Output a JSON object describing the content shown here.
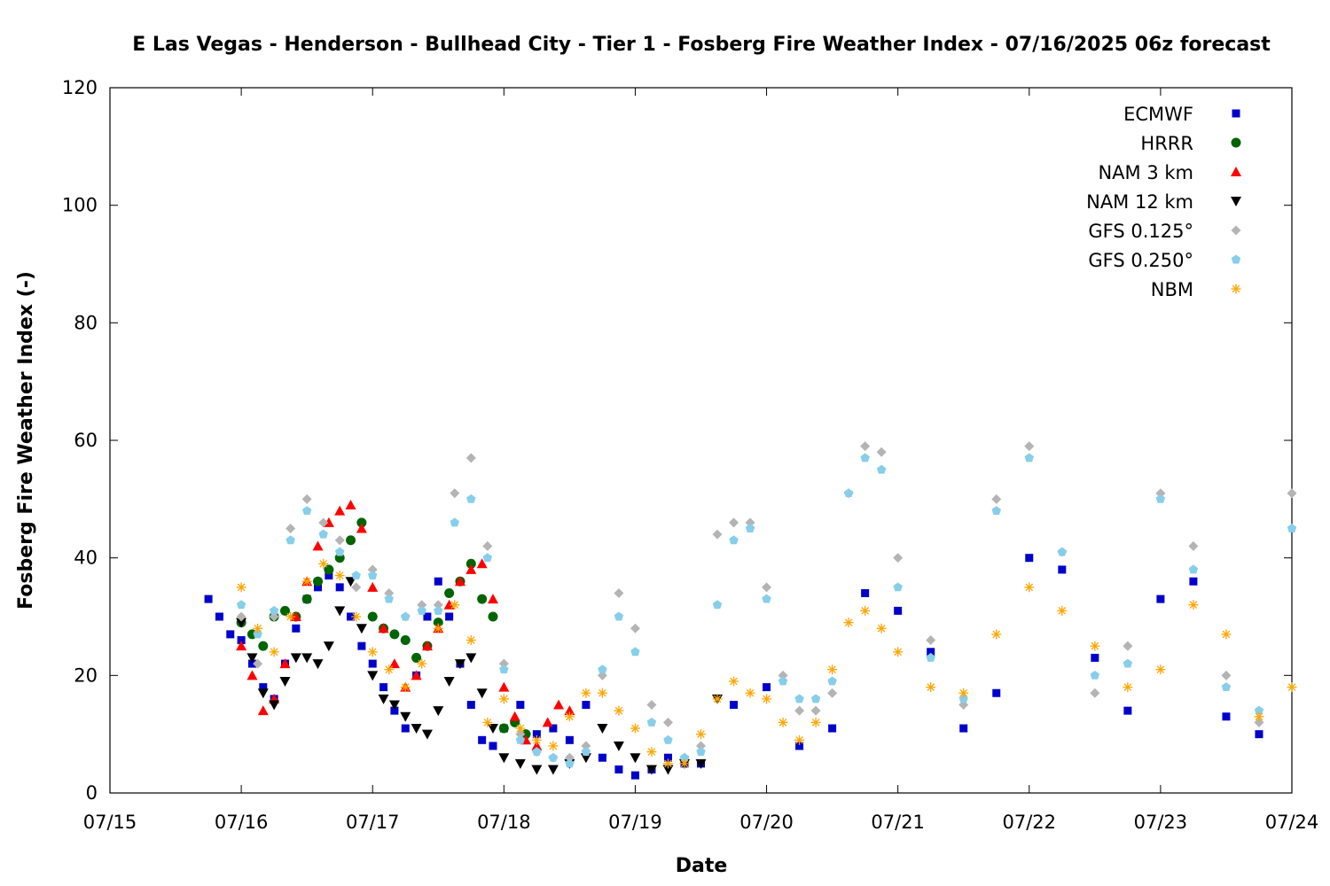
{
  "chart_data": {
    "type": "scatter",
    "title": "E Las Vegas - Henderson - Bullhead City - Tier 1 - Fosberg Fire Weather Index - 07/16/2025 06z forecast",
    "xlabel": "Date",
    "ylabel": "Fosberg Fire Weather Index (-)",
    "xlim": [
      "07/15",
      "07/24"
    ],
    "ylim": [
      0,
      120
    ],
    "x_ticks": [
      "07/15",
      "07/16",
      "07/17",
      "07/18",
      "07/19",
      "07/20",
      "07/21",
      "07/22",
      "07/23",
      "07/24"
    ],
    "y_ticks": [
      0,
      20,
      40,
      60,
      80,
      100,
      120
    ],
    "grid": false,
    "legend_position": "top-right",
    "colors": {
      "ECMWF": "#0000cc",
      "HRRR": "#006400",
      "NAM 3 km": "#ff0000",
      "NAM 12 km": "#000000",
      "GFS 0.125°": "#b4b4b4",
      "GFS 0.250°": "#87ceeb",
      "NBM": "#ffa500"
    },
    "series": [
      {
        "name": "ECMWF",
        "marker": "square",
        "x": [
          "07/15 18:00",
          "07/15 20:00",
          "07/15 22:00",
          "07/16 00:00",
          "07/16 02:00",
          "07/16 04:00",
          "07/16 06:00",
          "07/16 08:00",
          "07/16 10:00",
          "07/16 12:00",
          "07/16 14:00",
          "07/16 16:00",
          "07/16 18:00",
          "07/16 20:00",
          "07/16 22:00",
          "07/17 00:00",
          "07/17 02:00",
          "07/17 04:00",
          "07/17 06:00",
          "07/17 08:00",
          "07/17 10:00",
          "07/17 12:00",
          "07/17 14:00",
          "07/17 16:00",
          "07/17 18:00",
          "07/17 20:00",
          "07/17 22:00",
          "07/18 00:00",
          "07/18 03:00",
          "07/18 06:00",
          "07/18 09:00",
          "07/18 12:00",
          "07/18 15:00",
          "07/18 18:00",
          "07/18 21:00",
          "07/19 00:00",
          "07/19 03:00",
          "07/19 06:00",
          "07/19 09:00",
          "07/19 12:00",
          "07/19 18:00",
          "07/20 00:00",
          "07/20 06:00",
          "07/20 12:00",
          "07/20 18:00",
          "07/21 00:00",
          "07/21 06:00",
          "07/21 12:00",
          "07/21 18:00",
          "07/22 00:00",
          "07/22 06:00",
          "07/22 12:00",
          "07/22 18:00",
          "07/23 00:00",
          "07/23 06:00",
          "07/23 12:00",
          "07/23 18:00"
        ],
        "y": [
          33,
          30,
          27,
          26,
          22,
          18,
          16,
          22,
          28,
          33,
          35,
          37,
          35,
          30,
          25,
          22,
          18,
          14,
          11,
          20,
          30,
          36,
          30,
          22,
          15,
          9,
          8,
          11,
          15,
          10,
          11,
          9,
          15,
          6,
          4,
          3,
          4,
          6,
          5,
          5,
          15,
          18,
          8,
          11,
          34,
          31,
          24,
          11,
          17,
          40,
          38,
          23,
          14,
          33,
          36,
          13,
          10
        ]
      },
      {
        "name": "HRRR",
        "marker": "circle",
        "x": [
          "07/16 00:00",
          "07/16 02:00",
          "07/16 04:00",
          "07/16 06:00",
          "07/16 08:00",
          "07/16 10:00",
          "07/16 12:00",
          "07/16 14:00",
          "07/16 16:00",
          "07/16 18:00",
          "07/16 20:00",
          "07/16 22:00",
          "07/17 00:00",
          "07/17 02:00",
          "07/17 04:00",
          "07/17 06:00",
          "07/17 08:00",
          "07/17 10:00",
          "07/17 12:00",
          "07/17 14:00",
          "07/17 16:00",
          "07/17 18:00",
          "07/17 20:00",
          "07/17 22:00",
          "07/18 00:00",
          "07/18 02:00",
          "07/18 04:00"
        ],
        "y": [
          29,
          27,
          25,
          30,
          31,
          30,
          33,
          36,
          38,
          40,
          43,
          46,
          30,
          28,
          27,
          26,
          23,
          25,
          29,
          34,
          36,
          39,
          33,
          30,
          11,
          12,
          10
        ]
      },
      {
        "name": "NAM 3 km",
        "marker": "triangle-up",
        "x": [
          "07/16 00:00",
          "07/16 02:00",
          "07/16 04:00",
          "07/16 06:00",
          "07/16 08:00",
          "07/16 10:00",
          "07/16 12:00",
          "07/16 14:00",
          "07/16 16:00",
          "07/16 18:00",
          "07/16 20:00",
          "07/16 22:00",
          "07/17 00:00",
          "07/17 02:00",
          "07/17 04:00",
          "07/17 06:00",
          "07/17 08:00",
          "07/17 10:00",
          "07/17 12:00",
          "07/17 14:00",
          "07/17 16:00",
          "07/17 18:00",
          "07/17 20:00",
          "07/17 22:00",
          "07/18 00:00",
          "07/18 02:00",
          "07/18 04:00",
          "07/18 06:00",
          "07/18 08:00",
          "07/18 10:00",
          "07/18 12:00"
        ],
        "y": [
          25,
          20,
          14,
          16,
          22,
          30,
          36,
          42,
          46,
          48,
          49,
          45,
          35,
          28,
          22,
          18,
          20,
          25,
          28,
          32,
          36,
          38,
          39,
          33,
          18,
          13,
          9,
          8,
          12,
          15,
          14
        ]
      },
      {
        "name": "NAM 12 km",
        "marker": "triangle-down",
        "x": [
          "07/16 00:00",
          "07/16 02:00",
          "07/16 04:00",
          "07/16 06:00",
          "07/16 08:00",
          "07/16 10:00",
          "07/16 12:00",
          "07/16 14:00",
          "07/16 16:00",
          "07/16 18:00",
          "07/16 20:00",
          "07/16 22:00",
          "07/17 00:00",
          "07/17 02:00",
          "07/17 04:00",
          "07/17 06:00",
          "07/17 08:00",
          "07/17 10:00",
          "07/17 12:00",
          "07/17 14:00",
          "07/17 16:00",
          "07/17 18:00",
          "07/17 20:00",
          "07/17 22:00",
          "07/18 00:00",
          "07/18 03:00",
          "07/18 06:00",
          "07/18 09:00",
          "07/18 12:00",
          "07/18 15:00",
          "07/18 18:00",
          "07/18 21:00",
          "07/19 00:00",
          "07/19 03:00",
          "07/19 06:00",
          "07/19 09:00",
          "07/19 12:00",
          "07/19 15:00"
        ],
        "y": [
          29,
          23,
          17,
          15,
          19,
          23,
          23,
          22,
          25,
          31,
          36,
          28,
          20,
          16,
          15,
          13,
          11,
          10,
          14,
          19,
          22,
          23,
          17,
          11,
          6,
          5,
          4,
          4,
          5,
          6,
          11,
          8,
          6,
          4,
          4,
          5,
          5,
          16
        ]
      },
      {
        "name": "GFS 0.125°",
        "marker": "diamond",
        "x": [
          "07/16 00:00",
          "07/16 03:00",
          "07/16 06:00",
          "07/16 09:00",
          "07/16 12:00",
          "07/16 15:00",
          "07/16 18:00",
          "07/16 21:00",
          "07/17 00:00",
          "07/17 03:00",
          "07/17 06:00",
          "07/17 09:00",
          "07/17 12:00",
          "07/17 15:00",
          "07/17 18:00",
          "07/17 21:00",
          "07/18 00:00",
          "07/18 03:00",
          "07/18 06:00",
          "07/18 09:00",
          "07/18 12:00",
          "07/18 15:00",
          "07/18 18:00",
          "07/18 21:00",
          "07/19 00:00",
          "07/19 03:00",
          "07/19 06:00",
          "07/19 09:00",
          "07/19 12:00",
          "07/19 15:00",
          "07/19 18:00",
          "07/19 21:00",
          "07/20 00:00",
          "07/20 03:00",
          "07/20 06:00",
          "07/20 09:00",
          "07/20 12:00",
          "07/20 15:00",
          "07/20 18:00",
          "07/20 21:00",
          "07/21 00:00",
          "07/21 06:00",
          "07/21 12:00",
          "07/21 18:00",
          "07/22 00:00",
          "07/22 06:00",
          "07/22 12:00",
          "07/22 18:00",
          "07/23 00:00",
          "07/23 06:00",
          "07/23 12:00",
          "07/23 18:00",
          "07/24 00:00"
        ],
        "y": [
          30,
          22,
          30,
          45,
          50,
          46,
          43,
          35,
          38,
          34,
          30,
          32,
          32,
          51,
          57,
          42,
          22,
          10,
          7,
          6,
          6,
          8,
          20,
          34,
          28,
          15,
          12,
          6,
          8,
          44,
          46,
          46,
          35,
          20,
          14,
          14,
          17,
          51,
          59,
          58,
          40,
          26,
          15,
          50,
          59,
          41,
          17,
          25,
          51,
          42,
          20,
          12,
          51
        ]
      },
      {
        "name": "GFS 0.250°",
        "marker": "pentagon",
        "x": [
          "07/16 00:00",
          "07/16 03:00",
          "07/16 06:00",
          "07/16 09:00",
          "07/16 12:00",
          "07/16 15:00",
          "07/16 18:00",
          "07/16 21:00",
          "07/17 00:00",
          "07/17 03:00",
          "07/17 06:00",
          "07/17 09:00",
          "07/17 12:00",
          "07/17 15:00",
          "07/17 18:00",
          "07/17 21:00",
          "07/18 00:00",
          "07/18 03:00",
          "07/18 06:00",
          "07/18 09:00",
          "07/18 12:00",
          "07/18 15:00",
          "07/18 18:00",
          "07/18 21:00",
          "07/19 00:00",
          "07/19 03:00",
          "07/19 06:00",
          "07/19 09:00",
          "07/19 12:00",
          "07/19 15:00",
          "07/19 18:00",
          "07/19 21:00",
          "07/20 00:00",
          "07/20 03:00",
          "07/20 06:00",
          "07/20 09:00",
          "07/20 12:00",
          "07/20 15:00",
          "07/20 18:00",
          "07/20 21:00",
          "07/21 00:00",
          "07/21 06:00",
          "07/21 12:00",
          "07/21 18:00",
          "07/22 00:00",
          "07/22 06:00",
          "07/22 12:00",
          "07/22 18:00",
          "07/23 00:00",
          "07/23 06:00",
          "07/23 12:00",
          "07/23 18:00",
          "07/24 00:00"
        ],
        "y": [
          32,
          27,
          31,
          43,
          48,
          44,
          41,
          37,
          37,
          33,
          30,
          31,
          31,
          46,
          50,
          40,
          21,
          9,
          7,
          6,
          5,
          7,
          21,
          30,
          24,
          12,
          9,
          6,
          7,
          32,
          43,
          45,
          33,
          19,
          16,
          16,
          19,
          51,
          57,
          55,
          35,
          23,
          16,
          48,
          57,
          41,
          20,
          22,
          50,
          38,
          18,
          14,
          45
        ]
      },
      {
        "name": "NBM",
        "marker": "asterisk",
        "x": [
          "07/16 00:00",
          "07/16 03:00",
          "07/16 06:00",
          "07/16 09:00",
          "07/16 12:00",
          "07/16 15:00",
          "07/16 18:00",
          "07/16 21:00",
          "07/17 00:00",
          "07/17 03:00",
          "07/17 06:00",
          "07/17 09:00",
          "07/17 12:00",
          "07/17 15:00",
          "07/17 18:00",
          "07/17 21:00",
          "07/18 00:00",
          "07/18 03:00",
          "07/18 06:00",
          "07/18 09:00",
          "07/18 12:00",
          "07/18 15:00",
          "07/18 18:00",
          "07/18 21:00",
          "07/19 00:00",
          "07/19 03:00",
          "07/19 06:00",
          "07/19 09:00",
          "07/19 12:00",
          "07/19 15:00",
          "07/19 18:00",
          "07/19 21:00",
          "07/20 00:00",
          "07/20 03:00",
          "07/20 06:00",
          "07/20 09:00",
          "07/20 12:00",
          "07/20 15:00",
          "07/20 18:00",
          "07/20 21:00",
          "07/21 00:00",
          "07/21 06:00",
          "07/21 12:00",
          "07/21 18:00",
          "07/22 00:00",
          "07/22 06:00",
          "07/22 12:00",
          "07/22 18:00",
          "07/23 00:00",
          "07/23 06:00",
          "07/23 12:00",
          "07/23 18:00",
          "07/24 00:00"
        ],
        "y": [
          35,
          28,
          24,
          30,
          36,
          39,
          37,
          30,
          24,
          21,
          18,
          22,
          28,
          32,
          26,
          12,
          16,
          11,
          9,
          8,
          13,
          17,
          17,
          14,
          11,
          7,
          5,
          5,
          10,
          16,
          19,
          17,
          16,
          12,
          9,
          12,
          21,
          29,
          31,
          28,
          24,
          18,
          17,
          27,
          35,
          31,
          25,
          18,
          21,
          32,
          27,
          13,
          18
        ]
      }
    ]
  }
}
